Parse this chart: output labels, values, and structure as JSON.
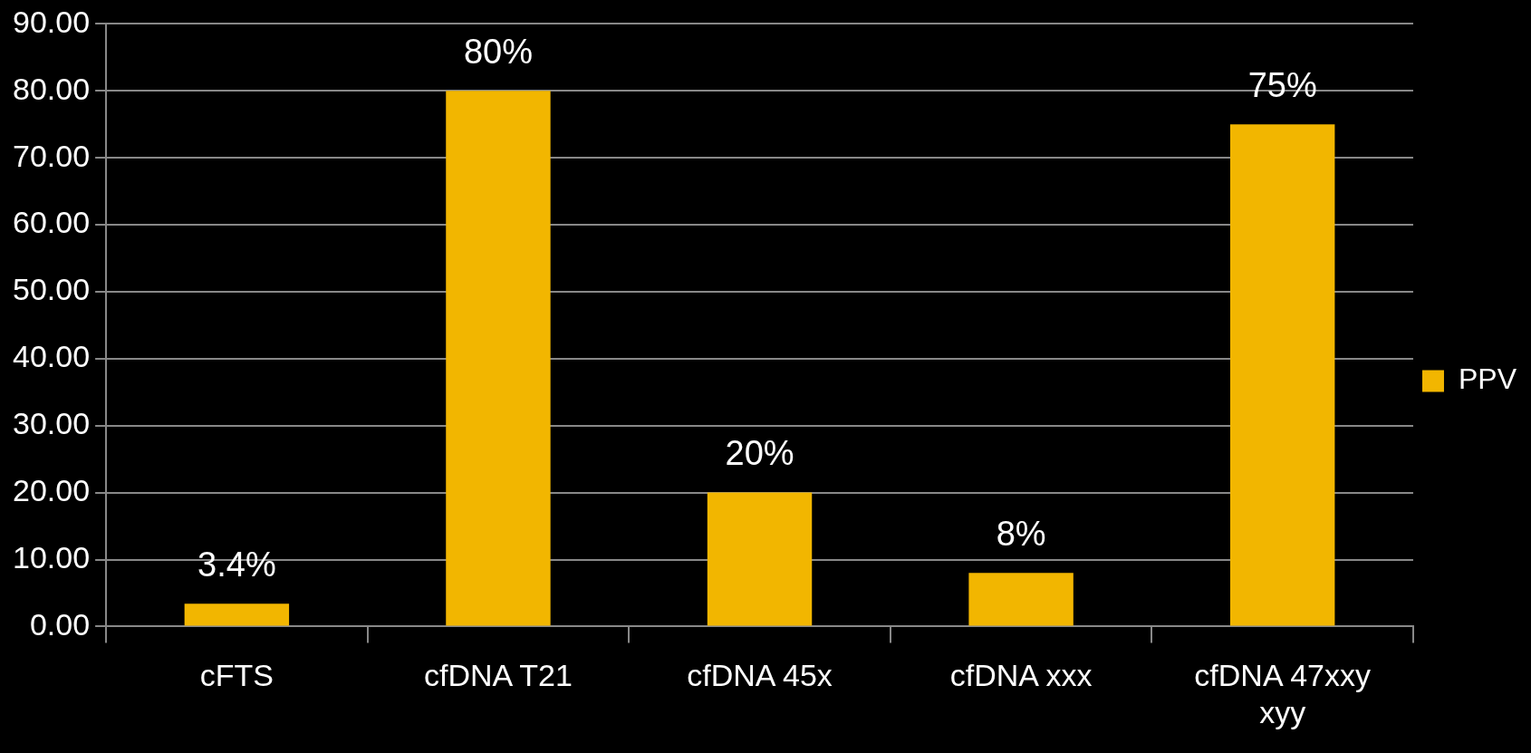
{
  "chart_data": {
    "type": "bar",
    "categories": [
      "cFTS",
      "cfDNA T21",
      "cfDNA 45x",
      "cfDNA xxx",
      "cfDNA 47xxy xyy"
    ],
    "series": [
      {
        "name": "PPV",
        "color": "#f2b600",
        "values": [
          3.4,
          80,
          20,
          8,
          75
        ],
        "value_labels": [
          "3.4%",
          "80%",
          "20%",
          "8%",
          "75%"
        ]
      }
    ],
    "ylim": [
      0,
      90
    ],
    "yticks": [
      {
        "value": 0,
        "label": "0.00"
      },
      {
        "value": 10,
        "label": "10.00"
      },
      {
        "value": 20,
        "label": "20.00"
      },
      {
        "value": 30,
        "label": "30.00"
      },
      {
        "value": 40,
        "label": "40.00"
      },
      {
        "value": 50,
        "label": "50.00"
      },
      {
        "value": 60,
        "label": "60.00"
      },
      {
        "value": 70,
        "label": "70.00"
      },
      {
        "value": 80,
        "label": "80.00"
      },
      {
        "value": 90,
        "label": "90.00"
      }
    ],
    "grid": "y",
    "legend": "right"
  }
}
